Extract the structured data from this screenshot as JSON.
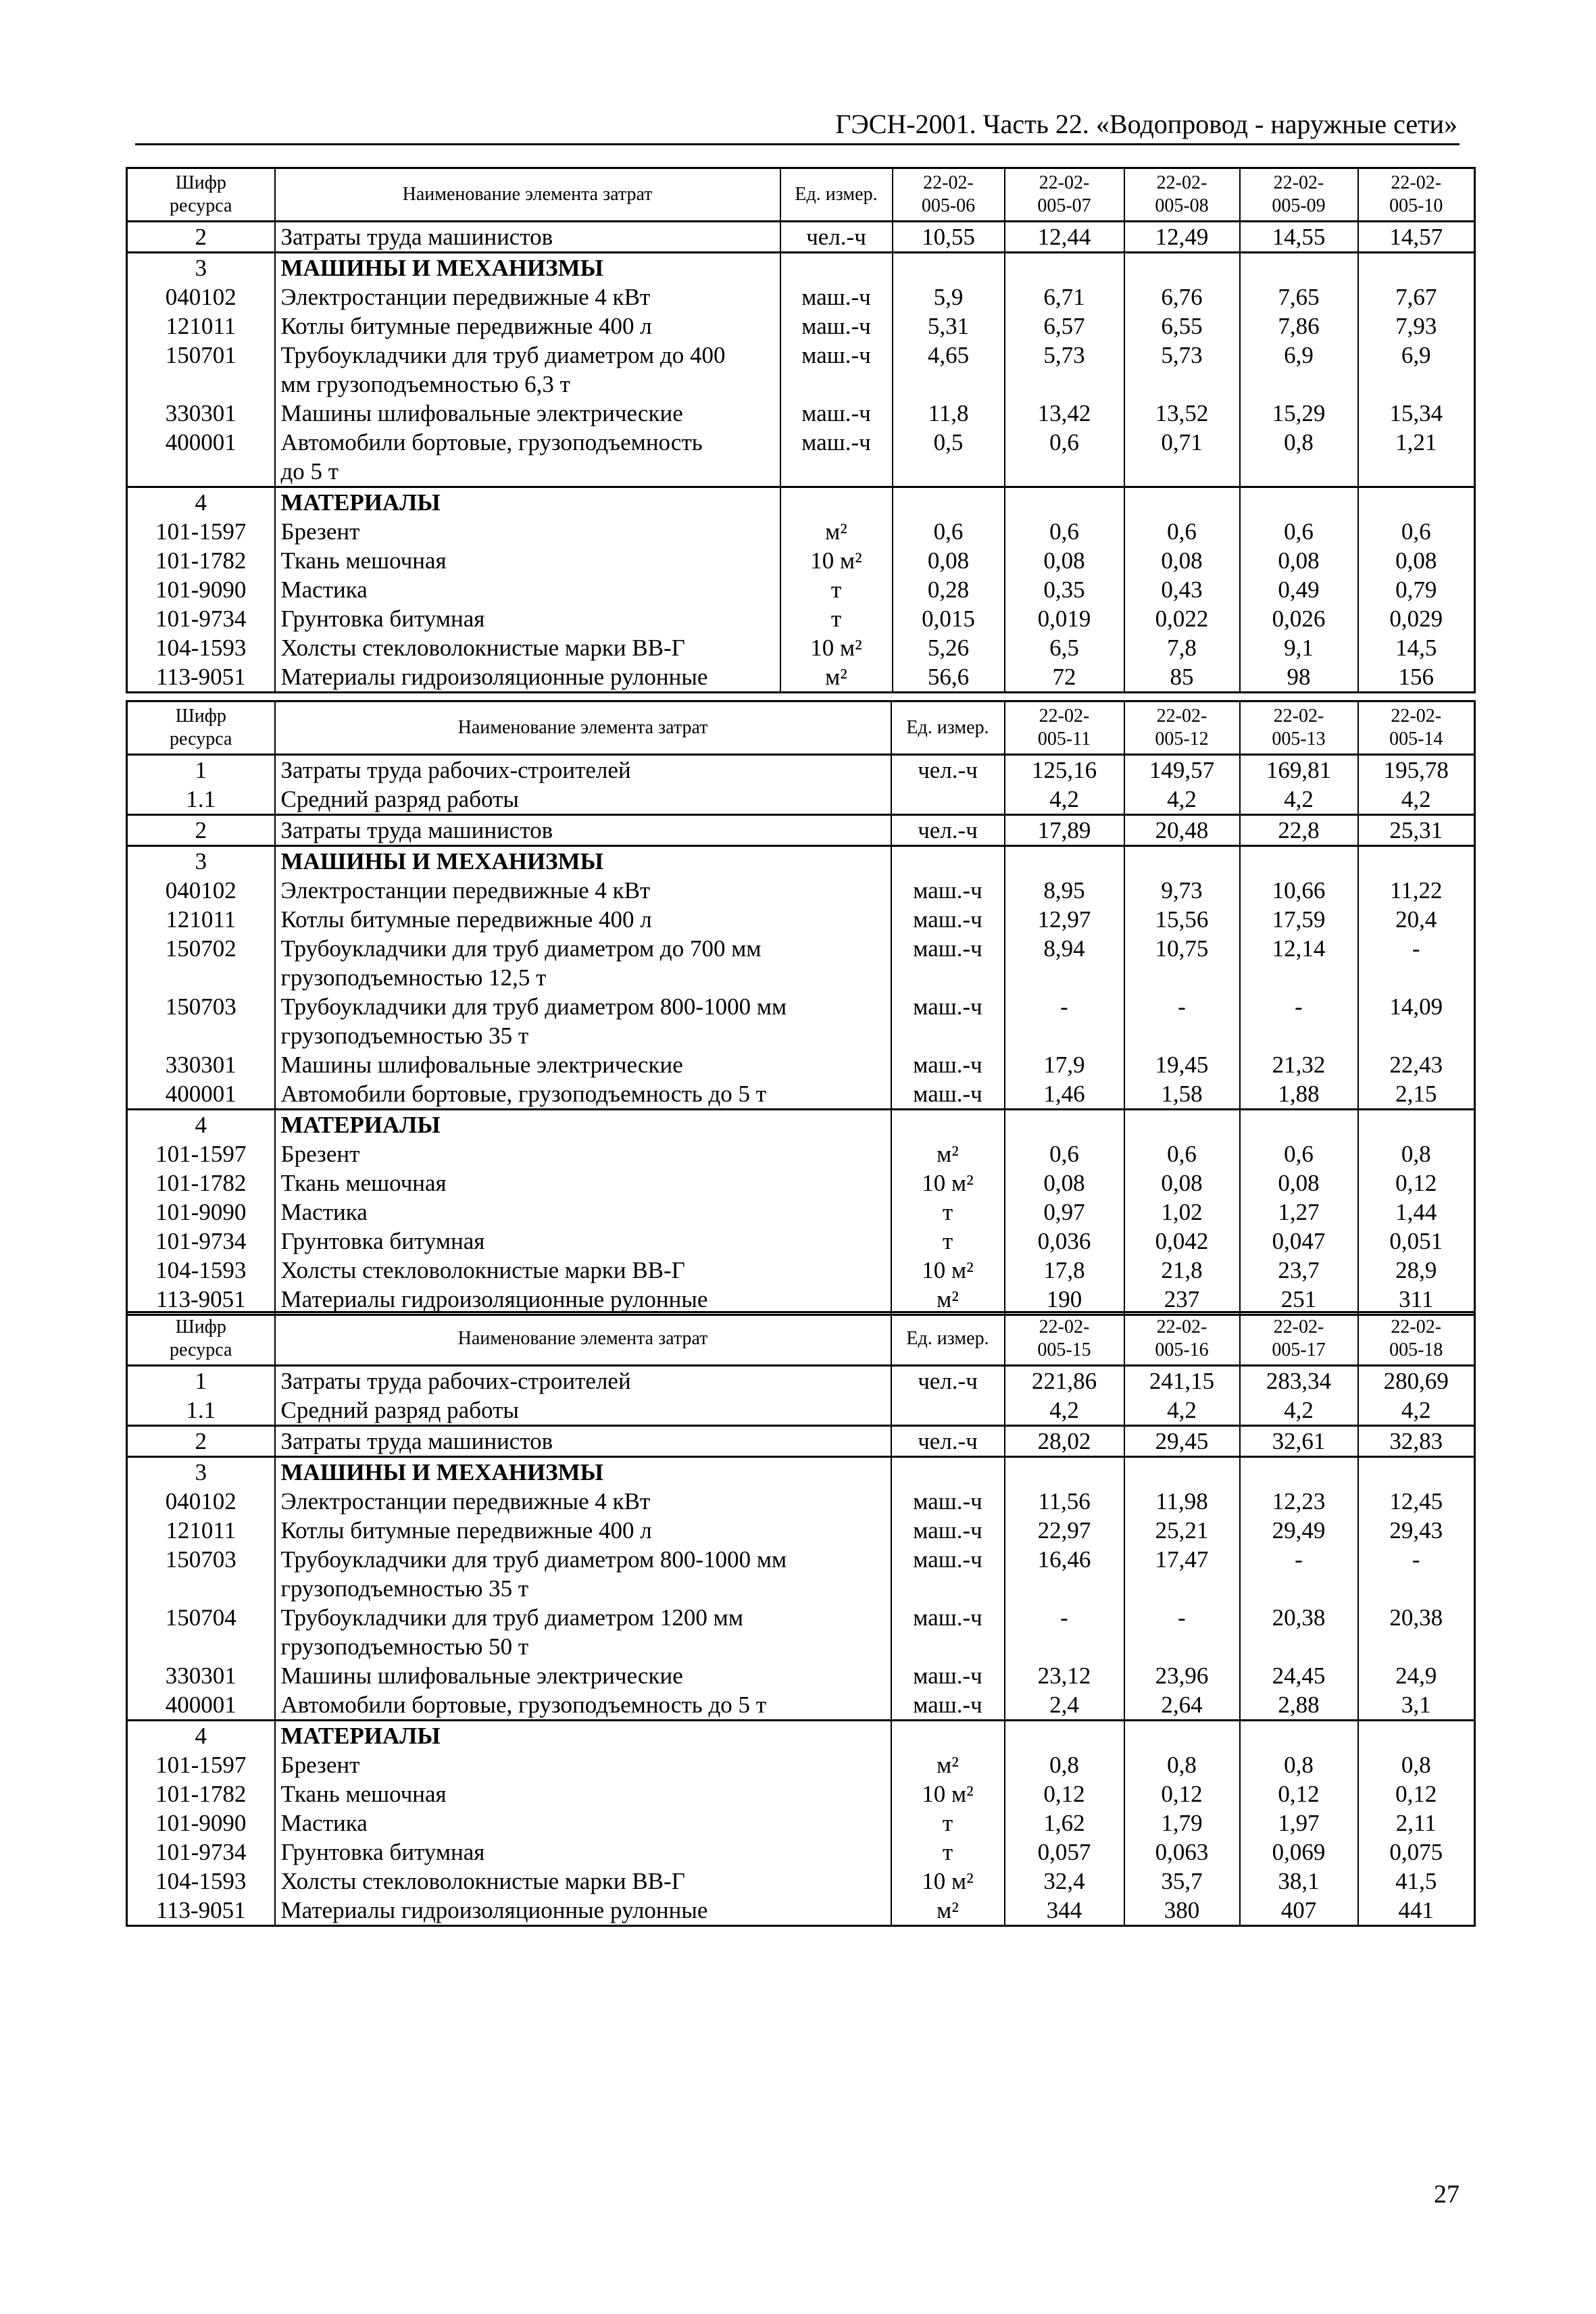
{
  "running_head": "ГЭСН-2001. Часть 22. «Водопровод - наружные сети»",
  "page_number": "27",
  "tables": [
    {
      "header": {
        "code": "Шифр\nресурса",
        "name": "Наименование элемента затрат",
        "unit": "Ед. измер.",
        "cols": [
          "22-02-\n005-06",
          "22-02-\n005-07",
          "22-02-\n005-08",
          "22-02-\n005-09",
          "22-02-\n005-10"
        ]
      },
      "sections": [
        {
          "rows": [
            {
              "code": "2",
              "name": "Затраты труда машинистов",
              "unit": "чел.-ч",
              "values": [
                "10,55",
                "12,44",
                "12,49",
                "14,55",
                "14,57"
              ]
            }
          ]
        },
        {
          "rows": [
            {
              "code": "3",
              "name": "МАШИНЫ И МЕХАНИЗМЫ",
              "bold": true,
              "unit": "",
              "values": [
                "",
                "",
                "",
                "",
                ""
              ]
            },
            {
              "code": "040102",
              "name": "Электростанции передвижные 4 кВт",
              "unit": "маш.-ч",
              "values": [
                "5,9",
                "6,71",
                "6,76",
                "7,65",
                "7,67"
              ]
            },
            {
              "code": "121011",
              "name": "Котлы битумные передвижные 400 л",
              "unit": "маш.-ч",
              "values": [
                "5,31",
                "6,57",
                "6,55",
                "7,86",
                "7,93"
              ]
            },
            {
              "code": "150701",
              "name": "Трубоукладчики для труб диаметром до 400\nмм грузоподъемностью 6,3 т",
              "unit": "маш.-ч",
              "values": [
                "4,65",
                "5,73",
                "5,73",
                "6,9",
                "6,9"
              ]
            },
            {
              "code": "330301",
              "name": "Машины шлифовальные электрические",
              "unit": "маш.-ч",
              "values": [
                "11,8",
                "13,42",
                "13,52",
                "15,29",
                "15,34"
              ]
            },
            {
              "code": "400001",
              "name": "Автомобили бортовые, грузоподъемность\nдо 5 т",
              "unit": "маш.-ч",
              "values": [
                "0,5",
                "0,6",
                "0,71",
                "0,8",
                "1,21"
              ]
            }
          ]
        },
        {
          "rows": [
            {
              "code": "4",
              "name": "МАТЕРИАЛЫ",
              "bold": true,
              "unit": "",
              "values": [
                "",
                "",
                "",
                "",
                ""
              ]
            },
            {
              "code": "101-1597",
              "name": "Брезент",
              "unit": "м²",
              "values": [
                "0,6",
                "0,6",
                "0,6",
                "0,6",
                "0,6"
              ]
            },
            {
              "code": "101-1782",
              "name": "Ткань мешочная",
              "unit": "10 м²",
              "values": [
                "0,08",
                "0,08",
                "0,08",
                "0,08",
                "0,08"
              ]
            },
            {
              "code": "101-9090",
              "name": "Мастика",
              "unit": "т",
              "values": [
                "0,28",
                "0,35",
                "0,43",
                "0,49",
                "0,79"
              ]
            },
            {
              "code": "101-9734",
              "name": "Грунтовка битумная",
              "unit": "т",
              "values": [
                "0,015",
                "0,019",
                "0,022",
                "0,026",
                "0,029"
              ]
            },
            {
              "code": "104-1593",
              "name": "Холсты стекловолокнистые марки ВВ-Г",
              "unit": "10 м²",
              "values": [
                "5,26",
                "6,5",
                "7,8",
                "9,1",
                "14,5"
              ]
            },
            {
              "code": "113-9051",
              "name": "Материалы гидроизоляционные рулонные",
              "unit": "м²",
              "values": [
                "56,6",
                "72",
                "85",
                "98",
                "156"
              ]
            }
          ]
        }
      ]
    },
    {
      "header": {
        "code": "Шифр\nресурса",
        "name": "Наименование элемента затрат",
        "unit": "Ед. измер.",
        "cols": [
          "22-02-\n005-11",
          "22-02-\n005-12",
          "22-02-\n005-13",
          "22-02-\n005-14"
        ]
      },
      "sections": [
        {
          "rows": [
            {
              "code": "1",
              "name": "Затраты труда рабочих-строителей",
              "unit": "чел.-ч",
              "values": [
                "125,16",
                "149,57",
                "169,81",
                "195,78"
              ]
            },
            {
              "code": "1.1",
              "name": "Средний разряд работы",
              "unit": "",
              "values": [
                "4,2",
                "4,2",
                "4,2",
                "4,2"
              ]
            }
          ]
        },
        {
          "rows": [
            {
              "code": "2",
              "name": "Затраты труда машинистов",
              "unit": "чел.-ч",
              "values": [
                "17,89",
                "20,48",
                "22,8",
                "25,31"
              ]
            }
          ]
        },
        {
          "rows": [
            {
              "code": "3",
              "name": "МАШИНЫ И МЕХАНИЗМЫ",
              "bold": true,
              "unit": "",
              "values": [
                "",
                "",
                "",
                ""
              ]
            },
            {
              "code": "040102",
              "name": "Электростанции передвижные 4 кВт",
              "unit": "маш.-ч",
              "values": [
                "8,95",
                "9,73",
                "10,66",
                "11,22"
              ]
            },
            {
              "code": "121011",
              "name": "Котлы битумные передвижные 400 л",
              "unit": "маш.-ч",
              "values": [
                "12,97",
                "15,56",
                "17,59",
                "20,4"
              ]
            },
            {
              "code": "150702",
              "name": "Трубоукладчики для труб диаметром до 700 мм\nгрузоподъемностью 12,5 т",
              "unit": "маш.-ч",
              "values": [
                "8,94",
                "10,75",
                "12,14",
                "-"
              ]
            },
            {
              "code": "150703",
              "name": "Трубоукладчики для труб диаметром 800-1000 мм\nгрузоподъемностью 35 т",
              "unit": "маш.-ч",
              "values": [
                "-",
                "-",
                "-",
                "14,09"
              ]
            },
            {
              "code": "330301",
              "name": "Машины шлифовальные электрические",
              "unit": "маш.-ч",
              "values": [
                "17,9",
                "19,45",
                "21,32",
                "22,43"
              ]
            },
            {
              "code": "400001",
              "name": "Автомобили бортовые, грузоподъемность до 5 т",
              "unit": "маш.-ч",
              "values": [
                "1,46",
                "1,58",
                "1,88",
                "2,15"
              ]
            }
          ]
        },
        {
          "rows": [
            {
              "code": "4",
              "name": "МАТЕРИАЛЫ",
              "bold": true,
              "unit": "",
              "values": [
                "",
                "",
                "",
                ""
              ]
            },
            {
              "code": "101-1597",
              "name": "Брезент",
              "unit": "м²",
              "values": [
                "0,6",
                "0,6",
                "0,6",
                "0,8"
              ]
            },
            {
              "code": "101-1782",
              "name": "Ткань мешочная",
              "unit": "10 м²",
              "values": [
                "0,08",
                "0,08",
                "0,08",
                "0,12"
              ]
            },
            {
              "code": "101-9090",
              "name": "Мастика",
              "unit": "т",
              "values": [
                "0,97",
                "1,02",
                "1,27",
                "1,44"
              ]
            },
            {
              "code": "101-9734",
              "name": "Грунтовка битумная",
              "unit": "т",
              "values": [
                "0,036",
                "0,042",
                "0,047",
                "0,051"
              ]
            },
            {
              "code": "104-1593",
              "name": "Холсты стекловолокнистые марки ВВ-Г",
              "unit": "10 м²",
              "values": [
                "17,8",
                "21,8",
                "23,7",
                "28,9"
              ]
            },
            {
              "code": "113-9051",
              "name": "Материалы гидроизоляционные рулонные",
              "unit": "м²",
              "values": [
                "190",
                "237",
                "251",
                "311"
              ]
            }
          ]
        }
      ]
    },
    {
      "header": {
        "code": "Шифр\nресурса",
        "name": "Наименование элемента затрат",
        "unit": "Ед. измер.",
        "cols": [
          "22-02-\n005-15",
          "22-02-\n005-16",
          "22-02-\n005-17",
          "22-02-\n005-18"
        ]
      },
      "sections": [
        {
          "rows": [
            {
              "code": "1",
              "name": "Затраты труда рабочих-строителей",
              "unit": "чел.-ч",
              "values": [
                "221,86",
                "241,15",
                "283,34",
                "280,69"
              ]
            },
            {
              "code": "1.1",
              "name": "Средний разряд работы",
              "unit": "",
              "values": [
                "4,2",
                "4,2",
                "4,2",
                "4,2"
              ]
            }
          ]
        },
        {
          "rows": [
            {
              "code": "2",
              "name": "Затраты труда машинистов",
              "unit": "чел.-ч",
              "values": [
                "28,02",
                "29,45",
                "32,61",
                "32,83"
              ]
            }
          ]
        },
        {
          "rows": [
            {
              "code": "3",
              "name": "МАШИНЫ И МЕХАНИЗМЫ",
              "bold": true,
              "unit": "",
              "values": [
                "",
                "",
                "",
                ""
              ]
            },
            {
              "code": "040102",
              "name": "Электростанции передвижные 4 кВт",
              "unit": "маш.-ч",
              "values": [
                "11,56",
                "11,98",
                "12,23",
                "12,45"
              ]
            },
            {
              "code": "121011",
              "name": "Котлы битумные передвижные 400 л",
              "unit": "маш.-ч",
              "values": [
                "22,97",
                "25,21",
                "29,49",
                "29,43"
              ]
            },
            {
              "code": "150703",
              "name": "Трубоукладчики для труб диаметром 800-1000 мм\nгрузоподъемностью 35 т",
              "unit": "маш.-ч",
              "values": [
                "16,46",
                "17,47",
                "-",
                "-"
              ]
            },
            {
              "code": "150704",
              "name": "Трубоукладчики для труб диаметром 1200 мм\nгрузоподъемностью 50 т",
              "unit": "маш.-ч",
              "values": [
                "-",
                "-",
                "20,38",
                "20,38"
              ]
            },
            {
              "code": "330301",
              "name": "Машины шлифовальные электрические",
              "unit": "маш.-ч",
              "values": [
                "23,12",
                "23,96",
                "24,45",
                "24,9"
              ]
            },
            {
              "code": "400001",
              "name": "Автомобили бортовые, грузоподъемность до 5 т",
              "unit": "маш.-ч",
              "values": [
                "2,4",
                "2,64",
                "2,88",
                "3,1"
              ]
            }
          ]
        },
        {
          "rows": [
            {
              "code": "4",
              "name": "МАТЕРИАЛЫ",
              "bold": true,
              "unit": "",
              "values": [
                "",
                "",
                "",
                ""
              ]
            },
            {
              "code": "101-1597",
              "name": "Брезент",
              "unit": "м²",
              "values": [
                "0,8",
                "0,8",
                "0,8",
                "0,8"
              ]
            },
            {
              "code": "101-1782",
              "name": "Ткань мешочная",
              "unit": "10 м²",
              "values": [
                "0,12",
                "0,12",
                "0,12",
                "0,12"
              ]
            },
            {
              "code": "101-9090",
              "name": "Мастика",
              "unit": "т",
              "values": [
                "1,62",
                "1,79",
                "1,97",
                "2,11"
              ]
            },
            {
              "code": "101-9734",
              "name": "Грунтовка битумная",
              "unit": "т",
              "values": [
                "0,057",
                "0,063",
                "0,069",
                "0,075"
              ]
            },
            {
              "code": "104-1593",
              "name": "Холсты стекловолокнистые марки ВВ-Г",
              "unit": "10 м²",
              "values": [
                "32,4",
                "35,7",
                "38,1",
                "41,5"
              ]
            },
            {
              "code": "113-9051",
              "name": "Материалы гидроизоляционные рулонные",
              "unit": "м²",
              "values": [
                "344",
                "380",
                "407",
                "441"
              ]
            }
          ]
        }
      ]
    }
  ]
}
